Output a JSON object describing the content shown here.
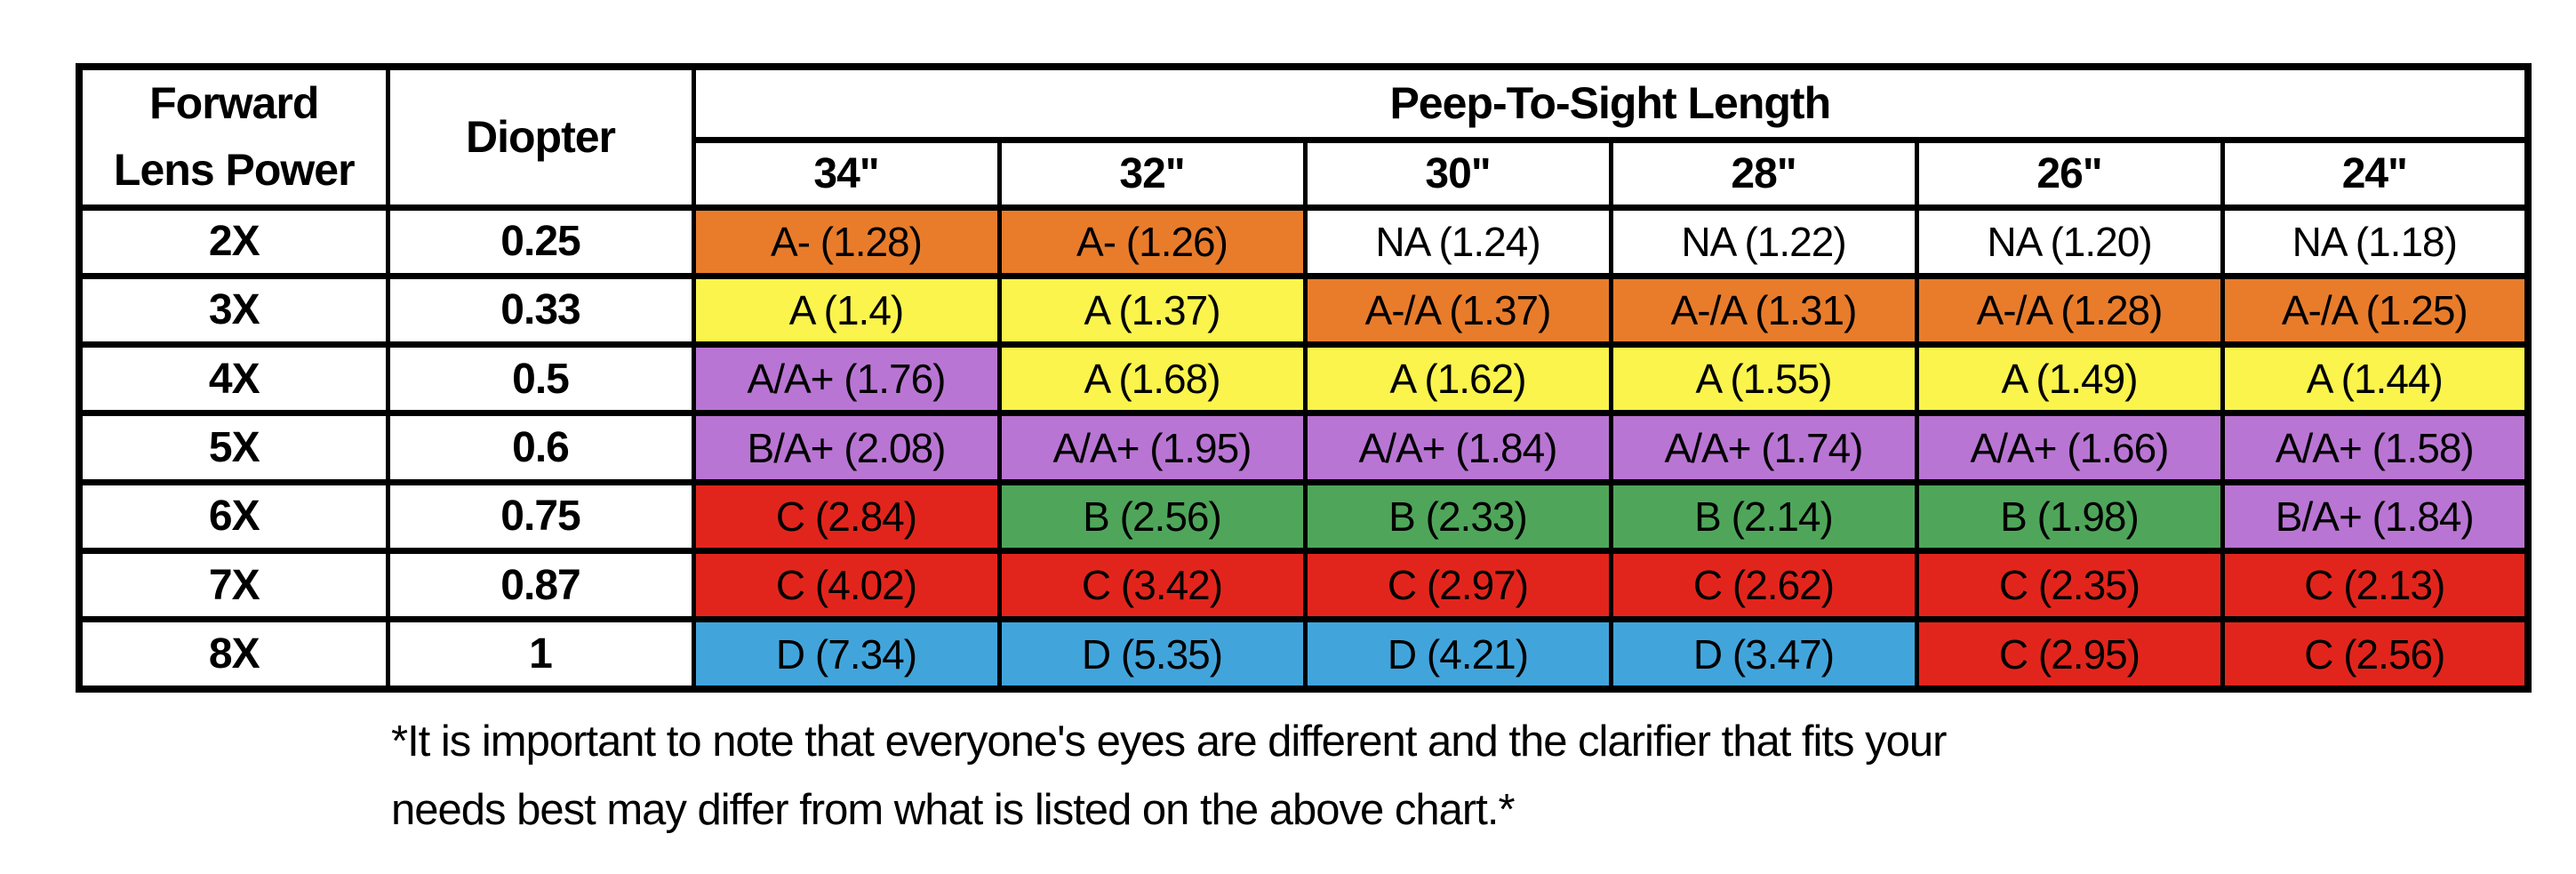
{
  "colors": {
    "orange": "#E87C2B",
    "yellow": "#FAF44C",
    "purple": "#B975D3",
    "green": "#4FA65A",
    "red": "#E2251C",
    "blue": "#41A5DC",
    "white": "#FFFFFF"
  },
  "chart_data": {
    "type": "table",
    "col1_header_line1": "Forward",
    "col1_header_line2": "Lens Power",
    "col2_header": "Diopter",
    "group_header": "Peep-To-Sight Length",
    "length_columns": [
      "34\"",
      "32\"",
      "30\"",
      "28\"",
      "26\"",
      "24\""
    ],
    "rows": [
      {
        "power": "2X",
        "diopter": "0.25",
        "cells": [
          {
            "label": "A- (1.28)",
            "color": "orange"
          },
          {
            "label": "A- (1.26)",
            "color": "orange"
          },
          {
            "label": "NA (1.24)",
            "color": "white"
          },
          {
            "label": "NA (1.22)",
            "color": "white"
          },
          {
            "label": "NA (1.20)",
            "color": "white"
          },
          {
            "label": "NA (1.18)",
            "color": "white"
          }
        ]
      },
      {
        "power": "3X",
        "diopter": "0.33",
        "cells": [
          {
            "label": "A (1.4)",
            "color": "yellow"
          },
          {
            "label": "A (1.37)",
            "color": "yellow"
          },
          {
            "label": "A-/A (1.37)",
            "color": "orange"
          },
          {
            "label": "A-/A (1.31)",
            "color": "orange"
          },
          {
            "label": "A-/A (1.28)",
            "color": "orange"
          },
          {
            "label": "A-/A (1.25)",
            "color": "orange"
          }
        ]
      },
      {
        "power": "4X",
        "diopter": "0.5",
        "cells": [
          {
            "label": "A/A+ (1.76)",
            "color": "purple"
          },
          {
            "label": "A (1.68)",
            "color": "yellow"
          },
          {
            "label": "A (1.62)",
            "color": "yellow"
          },
          {
            "label": "A (1.55)",
            "color": "yellow"
          },
          {
            "label": "A (1.49)",
            "color": "yellow"
          },
          {
            "label": "A (1.44)",
            "color": "yellow"
          }
        ]
      },
      {
        "power": "5X",
        "diopter": "0.6",
        "cells": [
          {
            "label": "B/A+ (2.08)",
            "color": "purple"
          },
          {
            "label": "A/A+ (1.95)",
            "color": "purple"
          },
          {
            "label": "A/A+ (1.84)",
            "color": "purple"
          },
          {
            "label": "A/A+ (1.74)",
            "color": "purple"
          },
          {
            "label": "A/A+ (1.66)",
            "color": "purple"
          },
          {
            "label": "A/A+ (1.58)",
            "color": "purple"
          }
        ]
      },
      {
        "power": "6X",
        "diopter": "0.75",
        "cells": [
          {
            "label": "C (2.84)",
            "color": "red"
          },
          {
            "label": "B (2.56)",
            "color": "green"
          },
          {
            "label": "B (2.33)",
            "color": "green"
          },
          {
            "label": "B (2.14)",
            "color": "green"
          },
          {
            "label": "B (1.98)",
            "color": "green"
          },
          {
            "label": "B/A+ (1.84)",
            "color": "purple"
          }
        ]
      },
      {
        "power": "7X",
        "diopter": "0.87",
        "cells": [
          {
            "label": "C (4.02)",
            "color": "red"
          },
          {
            "label": "C (3.42)",
            "color": "red"
          },
          {
            "label": "C (2.97)",
            "color": "red"
          },
          {
            "label": "C (2.62)",
            "color": "red"
          },
          {
            "label": "C (2.35)",
            "color": "red"
          },
          {
            "label": "C (2.13)",
            "color": "red"
          }
        ]
      },
      {
        "power": "8X",
        "diopter": "1",
        "cells": [
          {
            "label": "D (7.34)",
            "color": "blue"
          },
          {
            "label": "D (5.35)",
            "color": "blue"
          },
          {
            "label": "D (4.21)",
            "color": "blue"
          },
          {
            "label": "D (3.47)",
            "color": "blue"
          },
          {
            "label": "C (2.95)",
            "color": "red"
          },
          {
            "label": "C (2.56)",
            "color": "red"
          }
        ]
      }
    ]
  },
  "footnote": {
    "line1": "*It is important to note that everyone's eyes are different and the clarifier that fits your",
    "line2": "needs best may differ from what is listed on the above chart.*"
  }
}
